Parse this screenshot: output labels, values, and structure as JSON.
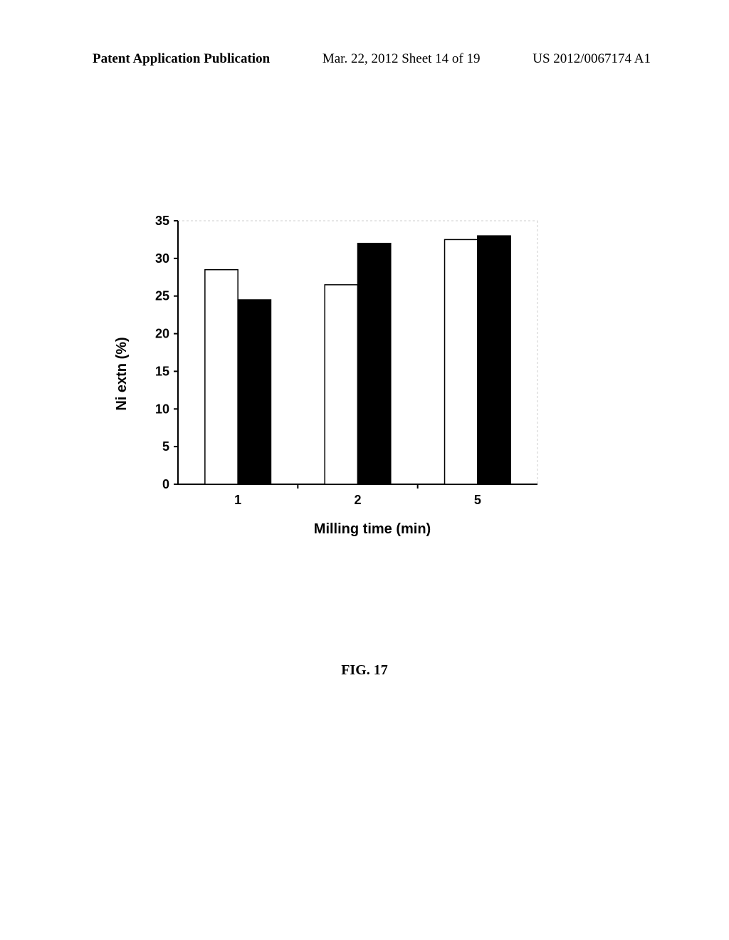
{
  "header": {
    "left": "Patent Application Publication",
    "mid": "Mar. 22, 2012  Sheet 14 of 19",
    "right": "US 2012/0067174 A1"
  },
  "figure_caption": "FIG. 17",
  "chart": {
    "type": "bar",
    "y_label": "Ni extn (%)",
    "x_label": "Milling time (min)",
    "y_min": 0,
    "y_max": 35,
    "y_tick_step": 5,
    "y_tick_labels": [
      "0",
      "5",
      "10",
      "15",
      "20",
      "25",
      "30",
      "35"
    ],
    "x_categories": [
      "1",
      "2",
      "5"
    ],
    "series": [
      {
        "name": "series-a",
        "fill": "#ffffff",
        "stroke": "#000000",
        "values": [
          28.5,
          26.5,
          32.5
        ]
      },
      {
        "name": "series-b",
        "fill": "#000000",
        "stroke": "#000000",
        "values": [
          24.5,
          32.0,
          33.0
        ]
      }
    ],
    "plot_background": "#ffffff",
    "axis_color": "#000000",
    "grid_color": "#cccccc",
    "bar_width_ratio": 0.55
  }
}
